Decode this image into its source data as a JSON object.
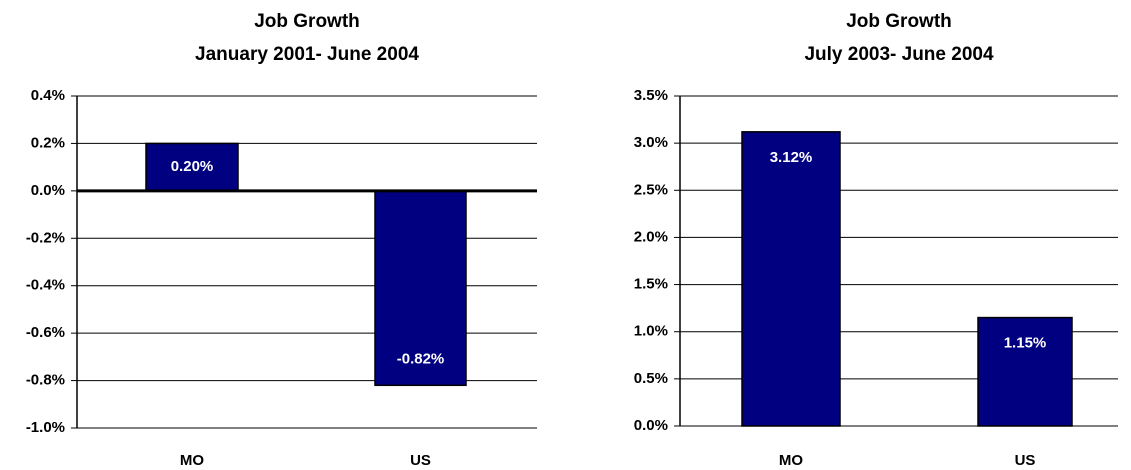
{
  "chart_data": [
    {
      "type": "bar",
      "title": "Job Growth",
      "subtitle": "January 2001- June 2004",
      "categories": [
        "MO",
        "US"
      ],
      "values": [
        0.2,
        -0.82
      ],
      "value_labels": [
        "0.20%",
        "-0.82%"
      ],
      "color": "#000080",
      "ylim": [
        -1.0,
        0.4
      ],
      "yticks": [
        {
          "value": -1.0,
          "label": "-1.0%"
        },
        {
          "value": -0.8,
          "label": "-0.8%"
        },
        {
          "value": -0.6,
          "label": "-0.6%"
        },
        {
          "value": -0.4,
          "label": "-0.4%"
        },
        {
          "value": -0.2,
          "label": "-0.2%"
        },
        {
          "value": 0.0,
          "label": "0.0%"
        },
        {
          "value": 0.2,
          "label": "0.2%"
        },
        {
          "value": 0.4,
          "label": "0.4%"
        }
      ],
      "grid": true
    },
    {
      "type": "bar",
      "title": "Job Growth",
      "subtitle": "July 2003- June 2004",
      "categories": [
        "MO",
        "US"
      ],
      "values": [
        3.12,
        1.15
      ],
      "value_labels": [
        "3.12%",
        "1.15%"
      ],
      "color": "#000080",
      "ylim": [
        0.0,
        3.5
      ],
      "yticks": [
        {
          "value": 0.0,
          "label": "0.0%"
        },
        {
          "value": 0.5,
          "label": "0.5%"
        },
        {
          "value": 1.0,
          "label": "1.0%"
        },
        {
          "value": 1.5,
          "label": "1.5%"
        },
        {
          "value": 2.0,
          "label": "2.0%"
        },
        {
          "value": 2.5,
          "label": "2.5%"
        },
        {
          "value": 3.0,
          "label": "3.0%"
        },
        {
          "value": 3.5,
          "label": "3.5%"
        }
      ],
      "grid": true
    }
  ]
}
